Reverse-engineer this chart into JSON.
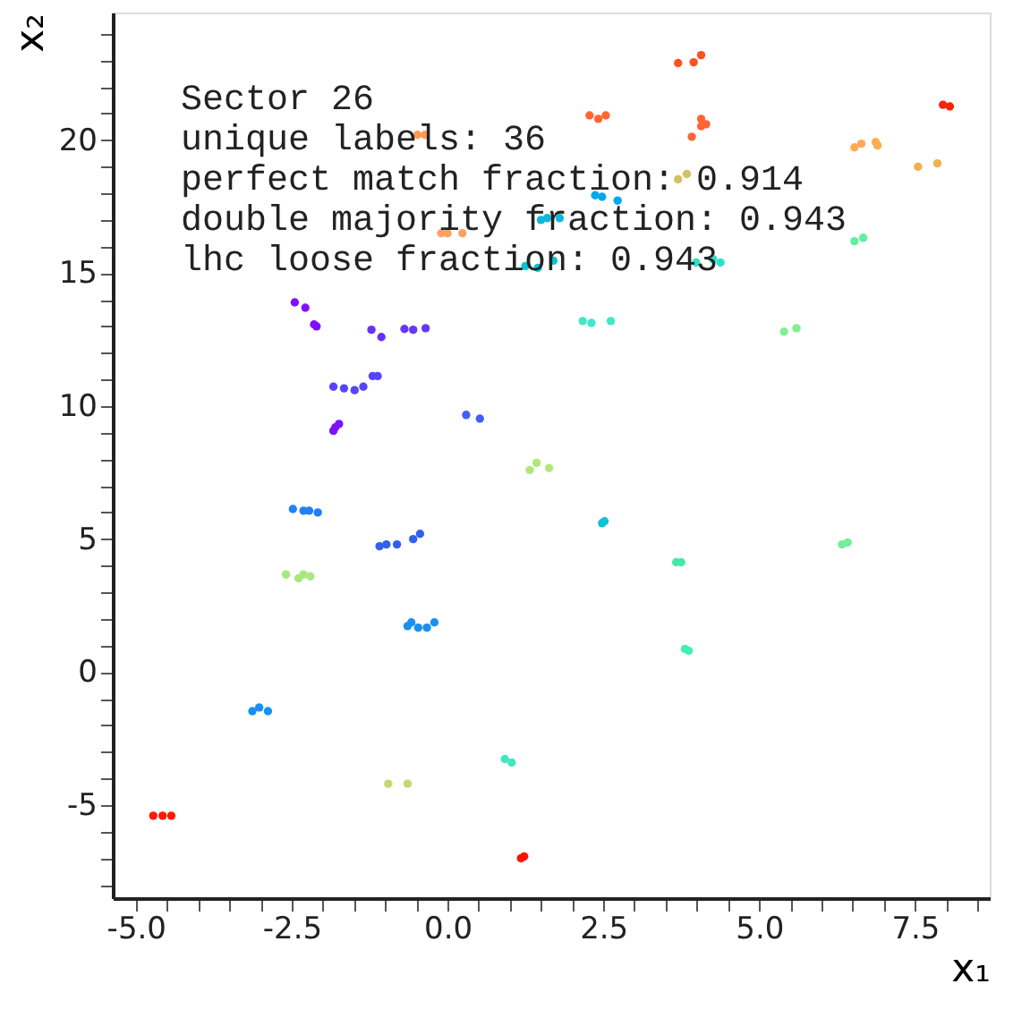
{
  "chart_data": {
    "type": "scatter",
    "xlabel": "x₁",
    "ylabel": "x₂",
    "annotations": [
      "Sector 26",
      "unique labels: 36",
      "perfect match fraction: 0.914",
      "double majority fraction: 0.943",
      "lhc loose fraction: 0.943"
    ],
    "xlim": [
      -5.37,
      8.7
    ],
    "ylim": [
      -8.5,
      24.8
    ],
    "xticks": [
      {
        "value": -5,
        "label": "-5.0"
      },
      {
        "value": -4.5,
        "label": null
      },
      {
        "value": -4,
        "label": null
      },
      {
        "value": -3.5,
        "label": null
      },
      {
        "value": -3,
        "label": null
      },
      {
        "value": -2.5,
        "label": "-2.5"
      },
      {
        "value": -2,
        "label": null
      },
      {
        "value": -1.5,
        "label": null
      },
      {
        "value": -1,
        "label": null
      },
      {
        "value": -0.5,
        "label": null
      },
      {
        "value": 0,
        "label": "0.0"
      },
      {
        "value": 0.5,
        "label": null
      },
      {
        "value": 1,
        "label": null
      },
      {
        "value": 1.5,
        "label": null
      },
      {
        "value": 2,
        "label": null
      },
      {
        "value": 2.5,
        "label": "2.5"
      },
      {
        "value": 3,
        "label": null
      },
      {
        "value": 3.5,
        "label": null
      },
      {
        "value": 4,
        "label": null
      },
      {
        "value": 4.5,
        "label": null
      },
      {
        "value": 5,
        "label": "5.0"
      },
      {
        "value": 5.5,
        "label": null
      },
      {
        "value": 6,
        "label": null
      },
      {
        "value": 6.5,
        "label": null
      },
      {
        "value": 7,
        "label": null
      },
      {
        "value": 7.5,
        "label": "7.5"
      },
      {
        "value": 8,
        "label": null
      },
      {
        "value": 8.5,
        "label": null
      }
    ],
    "yticks": [
      {
        "value": -8,
        "label": null
      },
      {
        "value": -7,
        "label": null
      },
      {
        "value": -6,
        "label": null
      },
      -5,
      {
        "value": -4,
        "label": null
      },
      {
        "value": -3,
        "label": null
      },
      {
        "value": -2,
        "label": null
      },
      {
        "value": -1,
        "label": null
      },
      0,
      {
        "value": 1,
        "label": null
      },
      {
        "value": 2,
        "label": null
      },
      {
        "value": 3,
        "label": null
      },
      {
        "value": 4,
        "label": null
      },
      5,
      {
        "value": 6,
        "label": null
      },
      {
        "value": 7,
        "label": null
      },
      {
        "value": 8,
        "label": null
      },
      {
        "value": 9,
        "label": null
      },
      10,
      {
        "value": 11,
        "label": null
      },
      {
        "value": 12,
        "label": null
      },
      {
        "value": 13,
        "label": null
      },
      {
        "value": 14,
        "label": null
      },
      15,
      {
        "value": 16,
        "label": null
      },
      {
        "value": 17,
        "label": null
      },
      {
        "value": 18,
        "label": null
      },
      {
        "value": 19,
        "label": null
      },
      20,
      {
        "value": 21,
        "label": null
      },
      {
        "value": 22,
        "label": null
      },
      {
        "value": 23,
        "label": null
      },
      {
        "value": 24,
        "label": null
      }
    ],
    "grid": false,
    "legend": false,
    "marker": "circle",
    "series": [
      {
        "x": [
          -0.48,
          -0.36,
          -0.1,
          0,
          0.24,
          -2.45,
          -2.28,
          -2.14,
          -2.1,
          -1.22,
          -1.06,
          -0.69,
          -0.55,
          -0.35,
          -1.83,
          -1.66,
          -1.49,
          -1.35,
          -1.2,
          -1.12,
          -1.83,
          -1.74,
          -1.8,
          0.3,
          0.52,
          3.7,
          3.95,
          4.07,
          2.28,
          2.42,
          2.54,
          4.07,
          4.15,
          4.07,
          3.92,
          7.95,
          8.06,
          6.53,
          6.64,
          6.87,
          6.9,
          7.55,
          7.86,
          3.7,
          3.84,
          2.37,
          2.48,
          2.73,
          1.5,
          1.6,
          1.8,
          1.25,
          1.45,
          1.7,
          3.99,
          4.26,
          4.38,
          6.53,
          6.67,
          2.17,
          2.31,
          2.62,
          5.4,
          5.6,
          1.32,
          1.43,
          1.63,
          -2.48,
          -2.31,
          -2.22,
          -2.08,
          -1.09,
          -0.98,
          -0.81,
          -0.55,
          -0.44,
          -2.59,
          -2.39,
          -2.31,
          -2.2,
          -0.64,
          -0.58,
          -0.47,
          -0.33,
          -0.21,
          -3.13,
          -3.02,
          -2.88,
          -0.95,
          -0.64,
          0.92,
          1.03,
          -4.72,
          -4.57,
          -4.43,
          1.18,
          1.23,
          2.48,
          2.52,
          3.67,
          3.75,
          3.81,
          3.87,
          6.33,
          6.42
        ],
        "values": [
          20.2,
          20.2,
          16.5,
          16.5,
          16.5,
          13.9,
          13.7,
          13.07,
          13.0,
          12.87,
          12.6,
          12.9,
          12.87,
          12.93,
          10.73,
          10.67,
          10.6,
          10.73,
          11.13,
          11.13,
          9.07,
          9.33,
          9.2,
          9.67,
          9.53,
          22.9,
          22.93,
          23.2,
          20.93,
          20.8,
          20.93,
          20.8,
          20.6,
          20.53,
          20.13,
          21.33,
          21.27,
          19.73,
          19.87,
          19.93,
          19.8,
          19.0,
          19.13,
          18.53,
          18.73,
          17.93,
          17.87,
          17.73,
          17.0,
          17.07,
          17.07,
          15.27,
          15.2,
          15.47,
          15.4,
          15.53,
          15.4,
          16.2,
          16.33,
          13.2,
          13.13,
          13.2,
          12.8,
          12.93,
          7.6,
          7.87,
          7.67,
          6.13,
          6.07,
          6.07,
          6.0,
          4.73,
          4.8,
          4.8,
          5.0,
          5.2,
          3.67,
          3.53,
          3.67,
          3.6,
          1.73,
          1.87,
          1.67,
          1.67,
          1.87,
          -1.47,
          -1.33,
          -1.47,
          -4.2,
          -4.2,
          -3.27,
          -3.4,
          -5.4,
          -5.4,
          -5.4,
          -7.0,
          -6.93,
          5.6,
          5.67,
          4.13,
          4.13,
          0.87,
          0.8,
          4.8,
          4.87
        ],
        "colors": [
          "#ff9a50",
          "#ff9a50",
          "#ffa060",
          "#ffa060",
          "#ffa060",
          "#8010ff",
          "#8010ff",
          "#8010ff",
          "#8010ff",
          "#6a30f8",
          "#6a30f8",
          "#6438f8",
          "#6438f8",
          "#6438f8",
          "#5844f8",
          "#5844f8",
          "#5844f8",
          "#5844f8",
          "#5844f8",
          "#5844f8",
          "#7a14ff",
          "#7a14ff",
          "#7a14ff",
          "#4060f8",
          "#4060f8",
          "#ff5020",
          "#ff5020",
          "#ff5020",
          "#ff6633",
          "#ff6633",
          "#ff6633",
          "#ff6633",
          "#ff6633",
          "#ff6633",
          "#ff6633",
          "#ff2200",
          "#ff2200",
          "#ffaa55",
          "#ffaa55",
          "#ffaa55",
          "#ffaa55",
          "#f0b050",
          "#f0b050",
          "#d4c060",
          "#d4c060",
          "#00a8ee",
          "#00a8ee",
          "#00a8ee",
          "#10b8e0",
          "#10b8e0",
          "#10b8e0",
          "#00c8d8",
          "#00c8d8",
          "#00c8d8",
          "#30e0c8",
          "#30e0c8",
          "#30e0c8",
          "#60f0a0",
          "#60f0a0",
          "#40e8c8",
          "#40e8c8",
          "#40e8c8",
          "#80f090",
          "#80f090",
          "#b0e878",
          "#b0e878",
          "#b0e878",
          "#2080f8",
          "#2080f8",
          "#2080f8",
          "#2080f8",
          "#3060f0",
          "#3060f0",
          "#3060f0",
          "#3060f0",
          "#3060f0",
          "#a8e880",
          "#a8e880",
          "#a8e880",
          "#a8e880",
          "#1890f0",
          "#1890f0",
          "#1890f0",
          "#1890f0",
          "#1890f0",
          "#1890f0",
          "#1890f0",
          "#1890f0",
          "#c8d870",
          "#c8d870",
          "#40e8c0",
          "#40e8c0",
          "#ff1a00",
          "#ff1a00",
          "#ff1a00",
          "#ff1000",
          "#ff1000",
          "#10c0d8",
          "#10c0d8",
          "#40eaa8",
          "#40eaa8",
          "#40f0b0",
          "#40f0b0",
          "#70f098",
          "#70f098"
        ]
      }
    ]
  }
}
